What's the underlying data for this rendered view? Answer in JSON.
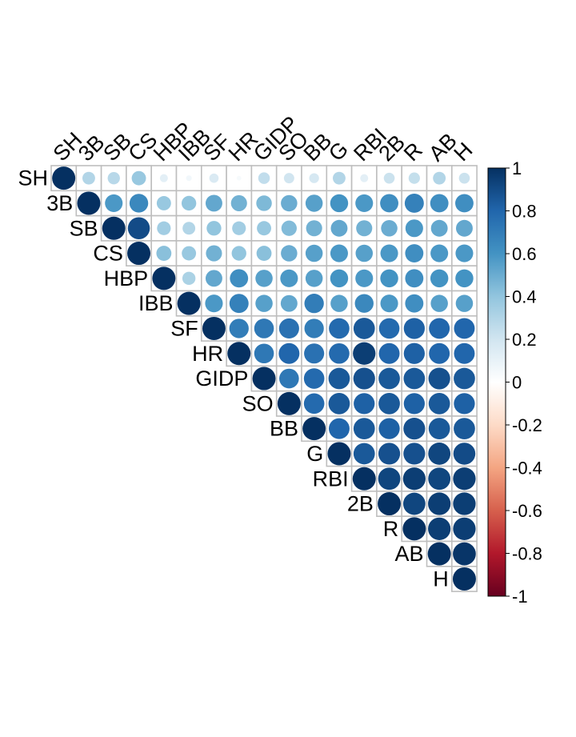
{
  "chart_data": {
    "type": "heatmap",
    "subtype": "correlation-upper-triangle",
    "variables": [
      "SH",
      "3B",
      "SB",
      "CS",
      "HBP",
      "IBB",
      "SF",
      "HR",
      "GIDP",
      "SO",
      "BB",
      "G",
      "RBI",
      "2B",
      "R",
      "AB",
      "H"
    ],
    "matrix": [
      [
        1.0,
        0.3,
        0.28,
        0.38,
        0.12,
        0.06,
        0.16,
        0.04,
        0.25,
        0.2,
        0.18,
        0.3,
        0.12,
        0.22,
        0.24,
        0.3,
        0.22
      ],
      [
        null,
        1.0,
        0.58,
        0.65,
        0.38,
        0.4,
        0.52,
        0.48,
        0.45,
        0.5,
        0.55,
        0.6,
        0.58,
        0.62,
        0.68,
        0.62,
        0.62
      ],
      [
        null,
        null,
        1.0,
        0.9,
        0.35,
        0.3,
        0.4,
        0.35,
        0.38,
        0.44,
        0.48,
        0.52,
        0.48,
        0.5,
        0.58,
        0.52,
        0.52
      ],
      [
        null,
        null,
        null,
        1.0,
        0.42,
        0.38,
        0.48,
        0.4,
        0.42,
        0.5,
        0.55,
        0.58,
        0.55,
        0.58,
        0.62,
        0.58,
        0.58
      ],
      [
        null,
        null,
        null,
        null,
        1.0,
        0.32,
        0.52,
        0.62,
        0.55,
        0.58,
        0.55,
        0.6,
        0.58,
        0.6,
        0.62,
        0.6,
        0.6
      ],
      [
        null,
        null,
        null,
        null,
        null,
        1.0,
        0.58,
        0.68,
        0.55,
        0.52,
        0.7,
        0.55,
        0.65,
        0.58,
        0.62,
        0.55,
        0.55
      ],
      [
        null,
        null,
        null,
        null,
        null,
        null,
        1.0,
        0.7,
        0.72,
        0.75,
        0.7,
        0.78,
        0.85,
        0.78,
        0.82,
        0.8,
        0.8
      ],
      [
        null,
        null,
        null,
        null,
        null,
        null,
        null,
        1.0,
        0.72,
        0.8,
        0.75,
        0.78,
        0.95,
        0.8,
        0.82,
        0.8,
        0.8
      ],
      [
        null,
        null,
        null,
        null,
        null,
        null,
        null,
        null,
        1.0,
        0.72,
        0.78,
        0.85,
        0.88,
        0.85,
        0.85,
        0.88,
        0.85
      ],
      [
        null,
        null,
        null,
        null,
        null,
        null,
        null,
        null,
        null,
        1.0,
        0.78,
        0.85,
        0.82,
        0.85,
        0.82,
        0.85,
        0.82
      ],
      [
        null,
        null,
        null,
        null,
        null,
        null,
        null,
        null,
        null,
        null,
        1.0,
        0.8,
        0.85,
        0.82,
        0.88,
        0.85,
        0.85
      ],
      [
        null,
        null,
        null,
        null,
        null,
        null,
        null,
        null,
        null,
        null,
        null,
        1.0,
        0.85,
        0.88,
        0.88,
        0.92,
        0.9
      ],
      [
        null,
        null,
        null,
        null,
        null,
        null,
        null,
        null,
        null,
        null,
        null,
        null,
        1.0,
        0.92,
        0.95,
        0.92,
        0.95
      ],
      [
        null,
        null,
        null,
        null,
        null,
        null,
        null,
        null,
        null,
        null,
        null,
        null,
        null,
        1.0,
        0.92,
        0.95,
        0.95
      ],
      [
        null,
        null,
        null,
        null,
        null,
        null,
        null,
        null,
        null,
        null,
        null,
        null,
        null,
        null,
        1.0,
        0.95,
        0.95
      ],
      [
        null,
        null,
        null,
        null,
        null,
        null,
        null,
        null,
        null,
        null,
        null,
        null,
        null,
        null,
        null,
        1.0,
        0.98
      ],
      [
        null,
        null,
        null,
        null,
        null,
        null,
        null,
        null,
        null,
        null,
        null,
        null,
        null,
        null,
        null,
        null,
        1.0
      ]
    ],
    "colorbar": {
      "range": [
        -1,
        1
      ],
      "ticks": [
        1,
        0.8,
        0.6,
        0.4,
        0.2,
        0,
        -0.2,
        -0.4,
        -0.6,
        -0.8,
        -1
      ],
      "tick_labels": [
        "1",
        "0.8",
        "0.6",
        "0.4",
        "0.2",
        "0",
        "-0.2",
        "-0.4",
        "-0.6",
        "-0.8",
        "-1"
      ],
      "colors": [
        "#67001F",
        "#B2182B",
        "#D6604D",
        "#F4A582",
        "#FDDBC7",
        "#FFFFFF",
        "#D1E5F0",
        "#92C5DE",
        "#4393C3",
        "#2166AC",
        "#053061"
      ]
    },
    "title": "",
    "grid_color": "#BEBEBE"
  }
}
